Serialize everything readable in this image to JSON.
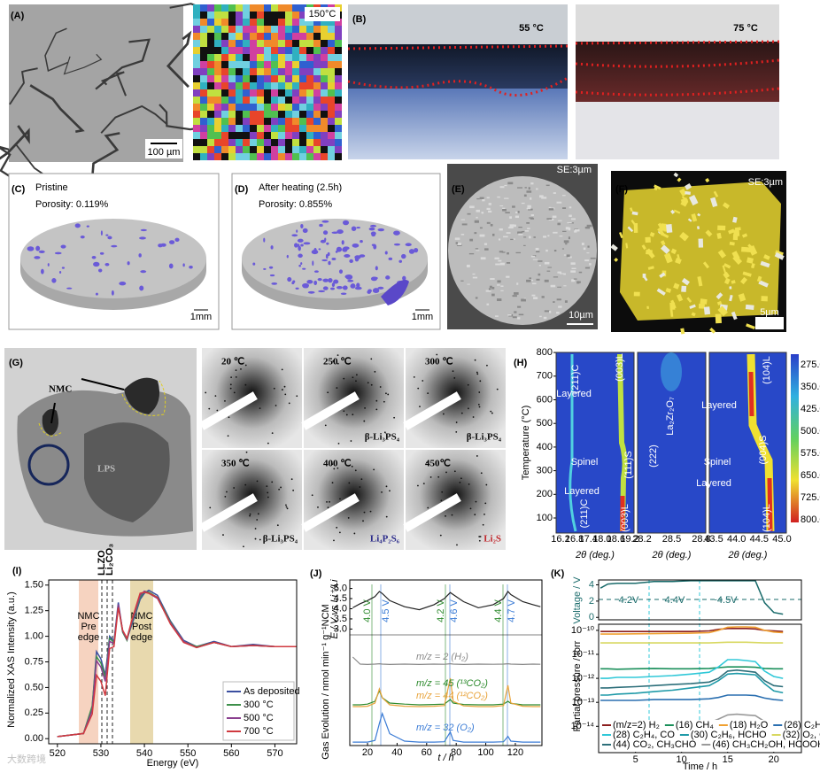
{
  "panels": {
    "A": {
      "label": "(A)",
      "scale_bar": "100 µm",
      "temperature": "150°C"
    },
    "B": {
      "label": "(B)",
      "temperatures": [
        "55 °C",
        "75 °C"
      ]
    },
    "C": {
      "label": "(C)",
      "title": "Pristine",
      "porosity": "Porosity: 0.119%",
      "scale_bar": "1mm"
    },
    "D": {
      "label": "(D)",
      "title": "After heating (2.5h)",
      "porosity": "Porosity: 0.855%",
      "scale_bar": "1mm"
    },
    "E": {
      "label": "(E)",
      "corner": "SE:3µm",
      "scale_bar": "10µm"
    },
    "F": {
      "label": "(F)",
      "corner": "SE:3µm",
      "scale_bar": "5µm"
    },
    "G": {
      "label": "(G)",
      "particles": [
        "NMC",
        "LPS"
      ],
      "patterns": [
        {
          "temperature": "20 ℃"
        },
        {
          "temperature": "250 ℃",
          "phase": "β-Li₃PS₄",
          "color": "#111111"
        },
        {
          "temperature": "300 ℃",
          "phase": "β-Li₃PS₄",
          "color": "#111111"
        },
        {
          "temperature": "350 ℃",
          "phase": "β-Li₃PS₄",
          "color": "#111111"
        },
        {
          "temperature": "400 ℃",
          "phase": "Li₄P₂S₆",
          "color": "#2b2b8a"
        },
        {
          "temperature": "450℃",
          "phase": "Li₂S",
          "color": "#c0282d"
        }
      ]
    },
    "H": {
      "label": "(H)",
      "ylabel": "Temperature (°C)",
      "yticks": [
        "100",
        "200",
        "300",
        "400",
        "500",
        "600",
        "700",
        "800"
      ],
      "colorbar": [
        "275.0",
        "350.0",
        "425.0",
        "500.0",
        "575.0",
        "650.0",
        "725.0",
        "800.0"
      ],
      "subplots": [
        {
          "xticks": [
            "16.2",
            "16.8",
            "17.4",
            "18.0",
            "18.6",
            "19.2"
          ],
          "xlabel": "2θ (deg.)"
        },
        {
          "xticks": [
            "28.2",
            "28.5",
            "28.8"
          ],
          "xlabel": "2θ (deg.)"
        },
        {
          "xticks": [
            "43.5",
            "44.0",
            "44.5",
            "45.0"
          ],
          "xlabel": "2θ (deg.)"
        }
      ],
      "annotations": [
        "(211)C",
        "(003)L",
        "Layered",
        "Spinel",
        "Layered",
        "(111)S",
        "(211)C",
        "(003)L",
        "(222)",
        "La₂Zr₂O₇",
        "(104)L",
        "Layered",
        "Spinel",
        "Layered",
        "(004)S",
        "(104)L"
      ]
    },
    "watermark": "大数跨境"
  },
  "chart_data": [
    {
      "type": "line",
      "label": "(I)",
      "xlabel": "Energy (eV)",
      "ylabel": "Normalized XAS Intensity (a.u.)",
      "x": [
        520,
        526,
        528,
        529,
        530,
        531,
        532,
        533,
        534,
        535,
        536,
        537,
        538,
        539,
        540,
        541,
        543,
        546,
        549,
        552,
        556,
        560,
        565,
        570,
        575
      ],
      "xlim": [
        518,
        575
      ],
      "xticks": [
        520,
        530,
        540,
        550,
        560,
        570
      ],
      "ylim": [
        -0.05,
        1.55
      ],
      "yticks": [
        {
          "value": 0,
          "label": "0.00"
        },
        {
          "value": 0.25,
          "label": "0.25"
        },
        {
          "value": 0.5,
          "label": "0.50"
        },
        {
          "value": 0.75,
          "label": "0.75"
        },
        {
          "value": 1,
          "label": "1.00"
        },
        {
          "value": 1.25,
          "label": "1.25"
        },
        {
          "value": 1.5,
          "label": "1.50"
        }
      ],
      "pre_edge": [
        "NMC",
        "Pre",
        "edge"
      ],
      "post_edge": [
        "NMC",
        "Post",
        "edge"
      ],
      "references": [
        "LLZO",
        "Li₂CO₃"
      ],
      "series": [
        {
          "name": "As deposited",
          "color": "#3b4fa0",
          "values": [
            0.02,
            0.05,
            0.3,
            0.85,
            0.78,
            0.62,
            1.0,
            0.95,
            1.33,
            1.05,
            0.97,
            1.1,
            1.22,
            1.36,
            1.42,
            1.45,
            1.4,
            1.15,
            0.96,
            0.9,
            0.95,
            0.9,
            0.92,
            0.9,
            0.9
          ]
        },
        {
          "name": "300 °C",
          "color": "#3d8f4a",
          "values": [
            0.02,
            0.05,
            0.32,
            0.8,
            0.74,
            0.6,
            0.98,
            0.94,
            1.3,
            1.04,
            0.96,
            1.12,
            1.24,
            1.38,
            1.44,
            1.43,
            1.38,
            1.14,
            0.95,
            0.9,
            0.94,
            0.9,
            0.91,
            0.9,
            0.9
          ]
        },
        {
          "name": "500 °C",
          "color": "#8a3f8f",
          "values": [
            0.02,
            0.05,
            0.28,
            0.76,
            0.7,
            0.56,
            0.95,
            0.93,
            1.31,
            1.05,
            0.97,
            1.13,
            1.26,
            1.4,
            1.44,
            1.42,
            1.37,
            1.13,
            0.95,
            0.89,
            0.94,
            0.9,
            0.91,
            0.9,
            0.9
          ]
        },
        {
          "name": "700 °C",
          "color": "#d0393f",
          "values": [
            0.02,
            0.05,
            0.24,
            0.62,
            0.56,
            0.42,
            0.88,
            0.9,
            1.28,
            1.06,
            0.98,
            1.14,
            1.28,
            1.42,
            1.43,
            1.42,
            1.38,
            1.12,
            0.94,
            0.89,
            0.94,
            0.9,
            0.91,
            0.9,
            0.9
          ]
        }
      ]
    },
    {
      "type": "line",
      "label": "(J)",
      "xlabel": "t / h",
      "gas_ylabel": "Gas Evolution / nmol min⁻¹ g⁻¹NCM",
      "x": [
        10,
        15,
        20,
        25,
        28,
        30,
        35,
        45,
        55,
        65,
        72,
        76,
        78,
        85,
        95,
        105,
        112,
        115,
        117,
        125,
        132,
        137
      ],
      "xlim": [
        8,
        138
      ],
      "xticks": [
        20,
        40,
        60,
        80,
        100,
        120
      ],
      "voltage": {
        "ylabel": "E / V vs Li⁺/Li",
        "color": "#222222",
        "ylim": [
          2.8,
          5.2
        ],
        "yticks": [
          {
            "value": 3,
            "label": "3.0"
          },
          {
            "value": 3.5,
            "label": "3.5"
          },
          {
            "value": 4,
            "label": "4.0"
          },
          {
            "value": 4.5,
            "label": "4.5"
          },
          {
            "value": 5,
            "label": "5.0"
          }
        ],
        "values": [
          4.05,
          4.25,
          4.4,
          4.6,
          4.85,
          4.75,
          4.4,
          4.1,
          3.95,
          4.2,
          4.5,
          4.8,
          4.7,
          4.35,
          4.05,
          4.2,
          4.5,
          4.85,
          4.7,
          4.35,
          4.2,
          4.1
        ]
      },
      "annotations": [
        "4.0 V",
        "4.5 V",
        "4.2 V",
        "4.6 V",
        "4.4 V",
        "4.7 V"
      ],
      "series": [
        {
          "name": "m/z = 2 (H₂)",
          "color": "#8a8a8a",
          "values": [
            0.5,
            0.1,
            0.08,
            0.1,
            0.12,
            0.1,
            0.08,
            0.1,
            0.08,
            0.1,
            0.09,
            0.12,
            0.1,
            0.08,
            0.1,
            0.09,
            0.1,
            0.12,
            0.1,
            0.08,
            0.1,
            0.09
          ]
        },
        {
          "name": "m/z = 45 (¹³CO₂)",
          "color": "#2e8b2e",
          "values": [
            0.1,
            0.1,
            0.12,
            0.2,
            0.5,
            0.3,
            0.15,
            0.12,
            0.1,
            0.11,
            0.12,
            0.25,
            0.15,
            0.11,
            0.1,
            0.1,
            0.12,
            0.2,
            0.14,
            0.1,
            0.1,
            0.1
          ]
        },
        {
          "name": "m/z = 44 (¹²CO₂)",
          "color": "#e8a33a",
          "values": [
            0.05,
            0.05,
            0.06,
            0.15,
            0.55,
            0.3,
            0.1,
            0.06,
            0.05,
            0.06,
            0.08,
            0.85,
            0.2,
            0.07,
            0.05,
            0.05,
            0.08,
            0.65,
            0.15,
            0.06,
            0.05,
            0.05
          ]
        },
        {
          "name": "m/z = 32 (O₂)",
          "color": "#3a7bd5",
          "values": [
            0.05,
            0.05,
            0.05,
            0.1,
            0.6,
            0.9,
            0.3,
            0.08,
            0.05,
            0.05,
            0.06,
            0.35,
            0.1,
            0.05,
            0.05,
            0.05,
            0.06,
            0.22,
            0.08,
            0.05,
            0.05,
            0.05
          ]
        }
      ]
    },
    {
      "type": "line",
      "label": "(K)",
      "log": true,
      "xlabel": "Time / h",
      "ylabel": "Partial pressure / torr",
      "x": [
        1.2,
        2,
        3,
        5,
        7,
        9,
        11,
        13,
        14,
        15,
        16,
        17,
        18,
        19,
        20,
        21
      ],
      "xlim": [
        1,
        23
      ],
      "xticks": [
        5,
        10,
        15,
        20
      ],
      "voltage": {
        "ylabel": "Voltage / V",
        "color": "#1a6b6b",
        "ylim": [
          -0.3,
          4.6
        ],
        "yticks": [
          0,
          2,
          4
        ],
        "values": [
          3.6,
          4.1,
          4.2,
          4.2,
          4.4,
          4.4,
          4.5,
          4.5,
          4.5,
          4.5,
          4.5,
          4.5,
          4.5,
          1.8,
          0.6,
          0.4
        ]
      },
      "annotations": [
        "4.2V",
        "4.4V",
        "~4.5V"
      ],
      "ylim": [
        8e-16,
        1.8e-10
      ],
      "yticks": [
        {
          "value": 1e-10,
          "label": "10⁻¹⁰"
        },
        {
          "value": 1e-11,
          "label": "10⁻¹¹"
        },
        {
          "value": 1e-12,
          "label": "10⁻¹²"
        },
        {
          "value": 1e-13,
          "label": "10⁻¹³"
        },
        {
          "value": 1e-14,
          "label": "10⁻¹⁴"
        }
      ],
      "series": [
        {
          "name": "(m/z=2) H₂",
          "color": "#8b1e1e",
          "values": [
            9e-11,
            9e-11,
            9e-11,
            9e-11,
            9e-11,
            9e-11,
            9e-11,
            9.5e-11,
            1.1e-10,
            1.2e-10,
            1.2e-10,
            1.2e-10,
            1.15e-10,
            1e-10,
            9.5e-11,
            9e-11
          ]
        },
        {
          "name": "(16) CH₄",
          "color": "#1a8f5a",
          "values": [
            2.5e-12,
            2.5e-12,
            2.4e-12,
            2.5e-12,
            2.6e-12,
            2.5e-12,
            2.5e-12,
            2.6e-12,
            2.8e-12,
            3e-12,
            3e-12,
            3e-12,
            2.9e-12,
            2.6e-12,
            2.5e-12,
            2.5e-12
          ]
        },
        {
          "name": "(18) H₂O",
          "color": "#f0a030",
          "values": [
            7e-11,
            7e-11,
            7e-11,
            7.2e-11,
            7.3e-11,
            7.5e-11,
            7.6e-11,
            8e-11,
            1e-10,
            1.35e-10,
            1.4e-10,
            1.4e-10,
            1.35e-10,
            1e-10,
            8.5e-11,
            8e-11
          ]
        },
        {
          "name": "(26) C₂H₂",
          "color": "#2a6fb0",
          "values": [
            1.2e-13,
            1.2e-13,
            1.2e-13,
            1.2e-13,
            1.3e-13,
            1.3e-13,
            1.3e-13,
            1.4e-13,
            1.6e-13,
            2e-13,
            2e-13,
            2e-13,
            1.9e-13,
            1.5e-13,
            1.3e-13,
            1.2e-13
          ]
        },
        {
          "name": "(28) C₂H₄, CO",
          "color": "#30c8d8",
          "values": [
            1e-12,
            1e-12,
            1.1e-12,
            1.1e-12,
            1.2e-12,
            1.3e-12,
            1.5e-12,
            1.8e-12,
            3e-12,
            6e-12,
            6e-12,
            5.5e-12,
            5e-12,
            2e-12,
            1.2e-12,
            1e-12
          ]
        },
        {
          "name": "(30) C₂H₆, HCHO",
          "color": "#1f9aa8",
          "values": [
            2e-13,
            2e-13,
            2.2e-13,
            2.4e-13,
            2.8e-13,
            3.2e-13,
            4e-13,
            5e-13,
            8e-13,
            1.5e-12,
            1.6e-12,
            1.5e-12,
            1.4e-12,
            6e-13,
            3e-13,
            2.5e-13
          ]
        },
        {
          "name": "(32) O₂, CH₃OH",
          "color": "#d8d860",
          "values": [
            3e-11,
            3e-11,
            3e-11,
            3e-11,
            3e-11,
            3e-11,
            3e-11,
            3e-11,
            3.1e-11,
            3.2e-11,
            3.2e-11,
            3.2e-11,
            3.1e-11,
            3e-11,
            3e-11,
            3e-11
          ]
        },
        {
          "name": "(44) CO₂, CH₃CHO",
          "color": "#2d6f7a",
          "values": [
            4e-13,
            4e-13,
            4.2e-13,
            4.5e-13,
            5e-13,
            5.5e-13,
            6e-13,
            7e-13,
            1e-12,
            2e-12,
            2.2e-12,
            2e-12,
            1.8e-12,
            8e-13,
            5e-13,
            4.5e-13
          ]
        },
        {
          "name": "(46) CH₃CH₂OH, HCOOH",
          "color": "#9a9a9a",
          "values": [
            1e-14,
            1.1e-14,
            1e-14,
            1.2e-14,
            1.1e-14,
            1.3e-14,
            1.2e-14,
            1.4e-14,
            2e-14,
            3e-14,
            3.2e-14,
            3e-14,
            2.8e-14,
            1.6e-14,
            1.2e-14,
            1.1e-14
          ]
        }
      ]
    }
  ]
}
